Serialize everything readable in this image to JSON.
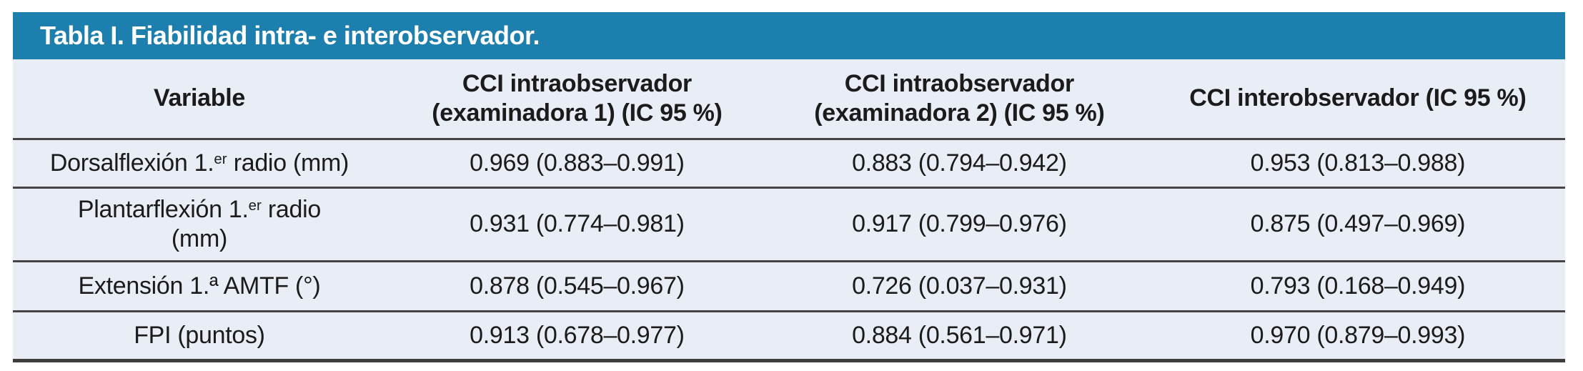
{
  "colors": {
    "accent_teal": "#1d7fae",
    "table_background": "#e9edf6",
    "title_text": "#ffffff",
    "body_text": "#1b1b1b",
    "rule": "#454545"
  },
  "title_bar": {
    "title": "Tabla I. Fiabilidad intra- e interobservador."
  },
  "table": {
    "headers": [
      {
        "line1": "Variable",
        "line2": ""
      },
      {
        "line1": "CCI intraobservador",
        "line2": "(examinadora 1) (IC 95 %)"
      },
      {
        "line1": "CCI intraobservador",
        "line2": "(examinadora 2) (IC 95 %)"
      },
      {
        "line1": "CCI interobservador (IC 95 %)",
        "line2": ""
      }
    ],
    "rows": [
      {
        "variable": {
          "pre": "Dorsalflexión 1.",
          "sup": "er",
          "post": " radio (mm)",
          "line2": ""
        },
        "values": [
          "0.969 (0.883–0.991)",
          "0.883 (0.794–0.942)",
          "0.953 (0.813–0.988)"
        ]
      },
      {
        "variable": {
          "pre": "Plantarflexión 1.",
          "sup": "er",
          "post": " radio",
          "line2": "(mm)"
        },
        "values": [
          "0.931 (0.774–0.981)",
          "0.917 (0.799–0.976)",
          "0.875 (0.497–0.969)"
        ]
      },
      {
        "variable": {
          "pre": "Extensión 1.ª AMTF (°)",
          "sup": "",
          "post": "",
          "line2": ""
        },
        "values": [
          "0.878 (0.545–0.967)",
          "0.726 (0.037–0.931)",
          "0.793 (0.168–0.949)"
        ]
      },
      {
        "variable": {
          "pre": "FPI (puntos)",
          "sup": "",
          "post": "",
          "line2": ""
        },
        "values": [
          "0.913 (0.678–0.977)",
          "0.884 (0.561–0.971)",
          "0.970 (0.879–0.993)"
        ]
      }
    ]
  },
  "chart_data": {
    "type": "table",
    "title": "Tabla I. Fiabilidad intra- e interobservador.",
    "columns": [
      "Variable",
      "CCI intraobservador (examinadora 1) (IC 95 %)",
      "CCI intraobservador (examinadora 2) (IC 95 %)",
      "CCI interobservador (IC 95 %)"
    ],
    "rows": [
      [
        "Dorsalflexión 1.er radio (mm)",
        "0.969 (0.883–0.991)",
        "0.883 (0.794–0.942)",
        "0.953 (0.813–0.988)"
      ],
      [
        "Plantarflexión 1.er radio (mm)",
        "0.931 (0.774–0.981)",
        "0.917 (0.799–0.976)",
        "0.875 (0.497–0.969)"
      ],
      [
        "Extensión 1.ª AMTF (°)",
        "0.878 (0.545–0.967)",
        "0.726 (0.037–0.931)",
        "0.793 (0.168–0.949)"
      ],
      [
        "FPI (puntos)",
        "0.913 (0.678–0.977)",
        "0.884 (0.561–0.971)",
        "0.970 (0.879–0.993)"
      ]
    ]
  }
}
